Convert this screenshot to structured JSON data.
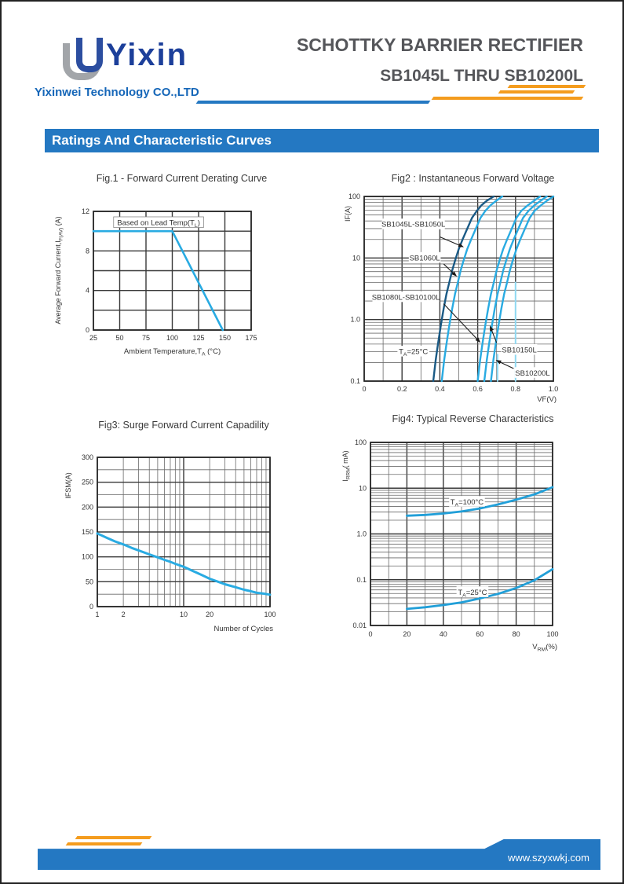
{
  "header": {
    "logo_text": "Yixin",
    "logo_mark": "nested-u-mark",
    "company": "Yixinwei Technology CO.,LTD",
    "title_line1": "SCHOTTKY BARRIER RECTIFIER",
    "title_line2": "SB1045L THRU SB10200L"
  },
  "section_title": "Ratings And Characteristic Curves",
  "footer": {
    "website": "www.szyxwkj.com"
  },
  "colors": {
    "accent_blue": "#2478c2",
    "accent_orange": "#f49c1e",
    "curve_blue": "#29abe2",
    "curve_dark": "#1a5a85",
    "curve_light": "#8fd8f2",
    "title_gray": "#55565a",
    "logo_navy": "#1c3f9a",
    "logo_gray": "#a2a5a9",
    "company_blue": "#1566b8"
  },
  "chart_data": [
    {
      "id": "fig1",
      "type": "line",
      "title": "Fig.1 - Forward Current Derating Curve",
      "xlabel": "Ambient Temperature,T_{A} (°C)",
      "ylabel": "Average Forward Current,I_{F(AV)} (A)",
      "x": {
        "scale": "linear",
        "min": 25,
        "max": 175,
        "grid_step": 25,
        "major_step": 25,
        "ticks": [
          25,
          50,
          75,
          100,
          125,
          150,
          175
        ]
      },
      "y": {
        "scale": "linear",
        "min": 0,
        "max": 12,
        "grid_step": 2,
        "major_step": 2,
        "ticks": [
          0,
          4,
          8,
          12
        ]
      },
      "series": [
        {
          "name": "derating-curve",
          "color": "#29abe2",
          "width": 2.6,
          "points": [
            [
              25,
              10
            ],
            [
              100,
              10
            ],
            [
              148,
              0
            ]
          ]
        }
      ],
      "annotations": [
        {
          "text": "Based on Lead Temp(T_{L})",
          "x": 87,
          "y": 10.85,
          "boxed": true
        }
      ]
    },
    {
      "id": "fig2",
      "type": "line",
      "title": "Fig2 :  Instantaneous Forward Voltage",
      "xlabel": "VF(V)",
      "ylabel": "IF(A)",
      "x": {
        "scale": "linear",
        "min": 0,
        "max": 1.0,
        "grid_step": 0.1,
        "major_step": 0.2,
        "ticks": [
          "0",
          "0.2",
          "0.4",
          "0.6",
          "0.8",
          "1.0"
        ]
      },
      "y": {
        "scale": "log",
        "min": 0.1,
        "max": 100,
        "ticks": [
          "100",
          "10",
          "1.0",
          "0.1"
        ]
      },
      "ambient": "T_{A}=25°C",
      "series": [
        {
          "name": "SB1045L-SB1050L",
          "color": "#1a5a85",
          "width": 2.4,
          "points": [
            [
              0.365,
              0.1
            ],
            [
              0.378,
              0.22
            ],
            [
              0.39,
              0.4
            ],
            [
              0.405,
              0.8
            ],
            [
              0.42,
              1.5
            ],
            [
              0.435,
              2.6
            ],
            [
              0.45,
              4
            ],
            [
              0.465,
              6.3
            ],
            [
              0.48,
              9
            ],
            [
              0.5,
              14
            ],
            [
              0.52,
              20
            ],
            [
              0.545,
              30
            ],
            [
              0.57,
              45
            ],
            [
              0.595,
              58
            ],
            [
              0.62,
              72
            ],
            [
              0.65,
              86
            ],
            [
              0.685,
              100
            ]
          ]
        },
        {
          "name": "SB1060L",
          "color": "#29abe2",
          "width": 2.4,
          "points": [
            [
              0.41,
              0.1
            ],
            [
              0.423,
              0.22
            ],
            [
              0.435,
              0.4
            ],
            [
              0.45,
              0.8
            ],
            [
              0.465,
              1.5
            ],
            [
              0.48,
              2.6
            ],
            [
              0.495,
              4
            ],
            [
              0.51,
              6.3
            ],
            [
              0.525,
              9
            ],
            [
              0.545,
              14
            ],
            [
              0.565,
              20
            ],
            [
              0.59,
              30
            ],
            [
              0.615,
              45
            ],
            [
              0.64,
              58
            ],
            [
              0.668,
              72
            ],
            [
              0.7,
              86
            ],
            [
              0.73,
              100
            ]
          ]
        },
        {
          "name": "SB1080L-SB10100L",
          "color": "#29abe2",
          "width": 2.4,
          "points": [
            [
              0.6,
              0.1
            ],
            [
              0.613,
              0.22
            ],
            [
              0.625,
              0.4
            ],
            [
              0.64,
              0.8
            ],
            [
              0.655,
              1.5
            ],
            [
              0.67,
              2.6
            ],
            [
              0.685,
              4
            ],
            [
              0.7,
              6.3
            ],
            [
              0.715,
              9
            ],
            [
              0.735,
              14
            ],
            [
              0.755,
              20
            ],
            [
              0.78,
              30
            ],
            [
              0.805,
              45
            ],
            [
              0.83,
              58
            ],
            [
              0.865,
              72
            ],
            [
              0.9,
              86
            ],
            [
              0.93,
              100
            ]
          ]
        },
        {
          "name": "SB10150L",
          "color": "#29abe2",
          "width": 2.4,
          "points": [
            [
              0.635,
              0.1
            ],
            [
              0.648,
              0.22
            ],
            [
              0.66,
              0.4
            ],
            [
              0.675,
              0.8
            ],
            [
              0.69,
              1.5
            ],
            [
              0.705,
              2.6
            ],
            [
              0.72,
              4
            ],
            [
              0.735,
              6.3
            ],
            [
              0.75,
              9
            ],
            [
              0.77,
              14
            ],
            [
              0.79,
              20
            ],
            [
              0.815,
              30
            ],
            [
              0.84,
              45
            ],
            [
              0.868,
              58
            ],
            [
              0.9,
              72
            ],
            [
              0.935,
              86
            ],
            [
              0.965,
              100
            ]
          ]
        },
        {
          "name": "SB10200L",
          "color": "#29abe2",
          "width": 2.4,
          "points": [
            [
              0.67,
              0.1
            ],
            [
              0.683,
              0.22
            ],
            [
              0.695,
              0.4
            ],
            [
              0.71,
              0.8
            ],
            [
              0.725,
              1.5
            ],
            [
              0.74,
              2.6
            ],
            [
              0.755,
              4
            ],
            [
              0.77,
              6.3
            ],
            [
              0.785,
              9
            ],
            [
              0.805,
              14
            ],
            [
              0.825,
              20
            ],
            [
              0.85,
              30
            ],
            [
              0.875,
              45
            ],
            [
              0.9,
              58
            ],
            [
              0.935,
              72
            ],
            [
              0.968,
              86
            ],
            [
              1.0,
              100
            ]
          ]
        },
        {
          "name": "trace-mark-1",
          "color": "#8fd8f2",
          "width": 2,
          "points": [
            [
              0.705,
              0.1
            ],
            [
              0.705,
              0.27
            ]
          ]
        },
        {
          "name": "trace-mark-2",
          "color": "#8fd8f2",
          "width": 2,
          "points": [
            [
              0.8,
              0.1
            ],
            [
              0.8,
              4
            ]
          ]
        }
      ],
      "annotations": [
        {
          "text": "SB1045L-SB1050L",
          "x": 0.26,
          "y": 35,
          "bg": true,
          "arrow": {
            "fx": 0.4,
            "fy": 22,
            "tx": 0.527,
            "ty": 15
          }
        },
        {
          "text": "SB1060L",
          "x": 0.32,
          "y": 10,
          "bg": true,
          "arrow": {
            "fx": 0.42,
            "fy": 8,
            "tx": 0.49,
            "ty": 5
          }
        },
        {
          "text": "SB1080L-SB10100L",
          "x": 0.22,
          "y": 2.3,
          "bg": true,
          "arrow": {
            "fx": 0.42,
            "fy": 1.8,
            "tx": 0.615,
            "ty": 0.42
          }
        },
        {
          "text": "T_{A}=25°C",
          "x": 0.26,
          "y": 0.3,
          "bg": true
        },
        {
          "text": "SB10150L",
          "x": 0.82,
          "y": 0.32,
          "bg": true,
          "arrow": {
            "fx": 0.7,
            "fy": 0.42,
            "tx": 0.664,
            "ty": 0.8
          }
        },
        {
          "text": "SB10200L",
          "x": 0.89,
          "y": 0.135,
          "bg": true,
          "arrow": {
            "fx": 0.79,
            "fy": 0.16,
            "tx": 0.695,
            "ty": 0.22
          }
        }
      ]
    },
    {
      "id": "fig3",
      "type": "line",
      "title": "Fig3:  Surge Forward Current Capadility",
      "xlabel": "Number of Cycles",
      "ylabel": "IFSM(A)",
      "x": {
        "scale": "log",
        "min": 1,
        "max": 100,
        "ticks": [
          "1",
          "2",
          "10",
          "20",
          "100"
        ]
      },
      "y": {
        "scale": "linear",
        "min": 0,
        "max": 300,
        "grid_step": 25,
        "major_step": 50,
        "ticks": [
          0,
          50,
          100,
          150,
          200,
          250,
          300
        ]
      },
      "series": [
        {
          "name": "surge-capability",
          "color": "#29abe2",
          "width": 3,
          "points": [
            [
              1,
              147
            ],
            [
              1.3,
              138
            ],
            [
              1.6,
              131
            ],
            [
              2,
              125
            ],
            [
              2.5,
              118
            ],
            [
              3,
              113
            ],
            [
              4,
              105
            ],
            [
              5,
              99
            ],
            [
              6,
              94
            ],
            [
              7,
              90
            ],
            [
              8,
              86
            ],
            [
              10,
              80
            ],
            [
              13,
              71
            ],
            [
              16,
              64
            ],
            [
              20,
              56
            ],
            [
              25,
              50
            ],
            [
              30,
              45
            ],
            [
              40,
              39
            ],
            [
              50,
              34
            ],
            [
              60,
              31
            ],
            [
              70,
              28
            ],
            [
              85,
              26
            ],
            [
              100,
              24
            ]
          ]
        }
      ],
      "annotations": []
    },
    {
      "id": "fig4",
      "type": "line",
      "title": "Fig4:   Typical Reverse Characteristics",
      "xlabel": "V_{RM}(%)",
      "ylabel": "I_{RRM}( mA)",
      "x": {
        "scale": "linear",
        "min": 0,
        "max": 100,
        "grid_step": 10,
        "major_step": 20,
        "ticks": [
          0,
          20,
          40,
          60,
          80,
          100
        ]
      },
      "y": {
        "scale": "log",
        "min": 0.01,
        "max": 100,
        "ticks": [
          "100",
          "10",
          "1.0",
          "0.1",
          "0.01"
        ]
      },
      "series": [
        {
          "name": "TA=100C",
          "color": "#219fd8",
          "width": 2.8,
          "points": [
            [
              20,
              2.5
            ],
            [
              30,
              2.6
            ],
            [
              40,
              2.8
            ],
            [
              50,
              3.1
            ],
            [
              60,
              3.6
            ],
            [
              70,
              4.4
            ],
            [
              80,
              5.6
            ],
            [
              90,
              7.3
            ],
            [
              100,
              10.5
            ]
          ]
        },
        {
          "name": "TA=25C",
          "color": "#219fd8",
          "width": 2.8,
          "points": [
            [
              20,
              0.023
            ],
            [
              30,
              0.025
            ],
            [
              40,
              0.028
            ],
            [
              50,
              0.032
            ],
            [
              60,
              0.039
            ],
            [
              70,
              0.049
            ],
            [
              80,
              0.066
            ],
            [
              90,
              0.097
            ],
            [
              100,
              0.17
            ]
          ]
        }
      ],
      "annotations": [
        {
          "text": "T_{A}=100°C",
          "x": 53,
          "y": 5,
          "bg": true
        },
        {
          "text": "T_{A}=25°C",
          "x": 56,
          "y": 0.053,
          "bg": true
        }
      ]
    }
  ]
}
